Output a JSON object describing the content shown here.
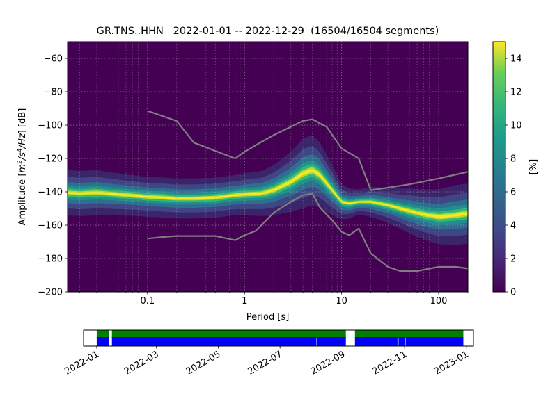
{
  "chart_data": {
    "type": "heatmap",
    "title": "GR.TNS..HHN   2022-01-01 -- 2022-12-29  (16504/16504 segments)",
    "xlabel": "Period [s]",
    "ylabel_main": "Amplitude [",
    "ylabel_unit_m": "m",
    "ylabel_unit_m_exp": "2",
    "ylabel_unit_s": "/s",
    "ylabel_unit_s_exp": "4",
    "ylabel_unit_hz": "/Hz",
    "ylabel_tail": "] [dB]",
    "x_scale": "log",
    "xlim": [
      0.015,
      200
    ],
    "ylim": [
      -200,
      -50
    ],
    "x_ticks": [
      {
        "value": 0.1,
        "label": "0.1"
      },
      {
        "value": 1,
        "label": "1"
      },
      {
        "value": 10,
        "label": "10"
      },
      {
        "value": 100,
        "label": "100"
      }
    ],
    "y_ticks": [
      {
        "value": -60,
        "label": "−60"
      },
      {
        "value": -80,
        "label": "−80"
      },
      {
        "value": -100,
        "label": "−100"
      },
      {
        "value": -120,
        "label": "−120"
      },
      {
        "value": -140,
        "label": "−140"
      },
      {
        "value": -160,
        "label": "−160"
      },
      {
        "value": -180,
        "label": "−180"
      },
      {
        "value": -200,
        "label": "−200"
      }
    ],
    "grid": true,
    "colorbar": {
      "label": "[%]",
      "colormap": "viridis",
      "range": [
        0,
        15
      ],
      "ticks": [
        {
          "value": 0,
          "label": "0"
        },
        {
          "value": 2,
          "label": "2"
        },
        {
          "value": 4,
          "label": "4"
        },
        {
          "value": 6,
          "label": "6"
        },
        {
          "value": 8,
          "label": "8"
        },
        {
          "value": 10,
          "label": "10"
        },
        {
          "value": 12,
          "label": "12"
        },
        {
          "value": 14,
          "label": "14"
        }
      ]
    },
    "mode_line": {
      "x": [
        0.015,
        0.02,
        0.03,
        0.05,
        0.08,
        0.1,
        0.15,
        0.2,
        0.3,
        0.5,
        0.8,
        1,
        1.5,
        2,
        3,
        4,
        5,
        6,
        8,
        10,
        12,
        15,
        20,
        30,
        40,
        50,
        70,
        100,
        150,
        200
      ],
      "y": [
        -140.5,
        -141,
        -140.5,
        -141.5,
        -142.5,
        -143,
        -143.5,
        -144,
        -144,
        -143.5,
        -142,
        -141.5,
        -141,
        -139,
        -134,
        -129,
        -127,
        -130,
        -139,
        -146,
        -147,
        -146,
        -146,
        -148,
        -150,
        -151.5,
        -153.5,
        -155,
        -154,
        -153
      ],
      "spread": [
        4.5,
        4.5,
        4.5,
        4.2,
        4,
        4,
        4,
        4,
        4,
        4,
        4,
        4.2,
        4.5,
        5,
        6,
        7,
        7,
        6.5,
        5,
        3.5,
        3,
        2.5,
        3,
        3.5,
        4,
        4.5,
        5,
        5.5,
        6,
        6
      ]
    },
    "noise_models": [
      {
        "x": [
          0.1,
          0.2,
          0.3,
          0.5,
          0.8,
          1,
          1.5,
          2,
          3,
          4,
          5,
          6,
          7,
          10,
          15,
          20,
          30,
          50,
          100,
          200
        ],
        "y": [
          -91.5,
          -97.5,
          -110.5,
          -115.5,
          -120,
          -116,
          -110,
          -106,
          -101,
          -97.5,
          -96.5,
          -99,
          -101,
          -114,
          -120,
          -139,
          -137.5,
          -135.5,
          -132,
          -128
        ]
      },
      {
        "x": [
          0.1,
          0.15,
          0.2,
          0.3,
          0.5,
          0.8,
          1,
          1.3,
          2,
          3,
          4,
          5,
          6,
          8,
          10,
          12,
          15,
          20,
          30,
          40,
          60,
          100,
          150,
          200
        ],
        "y": [
          -168,
          -167,
          -166.5,
          -166.5,
          -166.5,
          -169,
          -166,
          -163.5,
          -152.5,
          -146,
          -142,
          -141,
          -149.5,
          -157,
          -164,
          -166,
          -162,
          -177,
          -185,
          -187.5,
          -187.5,
          -185,
          -185,
          -186
        ]
      }
    ]
  },
  "availability": {
    "x_ticks": [
      {
        "date": "2022-01-01",
        "label": "2022-01"
      },
      {
        "date": "2022-03-01",
        "label": "2022-03"
      },
      {
        "date": "2022-05-01",
        "label": "2022-05"
      },
      {
        "date": "2022-07-01",
        "label": "2022-07"
      },
      {
        "date": "2022-09-01",
        "label": "2022-09"
      },
      {
        "date": "2022-11-01",
        "label": "2022-11"
      },
      {
        "date": "2023-01-01",
        "label": "2023-01"
      }
    ],
    "xlim": [
      "2021-12-19",
      "2023-01-08"
    ],
    "available_color": "#008000",
    "used_color": "#0000ff",
    "gap_color": "#ffffff",
    "available_spans": [
      [
        "2022-01-01",
        "2022-01-13"
      ],
      [
        "2022-01-16",
        "2022-09-04"
      ],
      [
        "2022-09-13",
        "2022-12-29"
      ]
    ],
    "used_spans": [
      [
        "2022-01-01",
        "2022-01-13"
      ],
      [
        "2022-01-16",
        "2022-08-06"
      ],
      [
        "2022-08-07",
        "2022-09-04"
      ],
      [
        "2022-09-13",
        "2022-10-25"
      ],
      [
        "2022-10-26",
        "2022-11-01"
      ],
      [
        "2022-11-02",
        "2022-12-29"
      ]
    ]
  }
}
